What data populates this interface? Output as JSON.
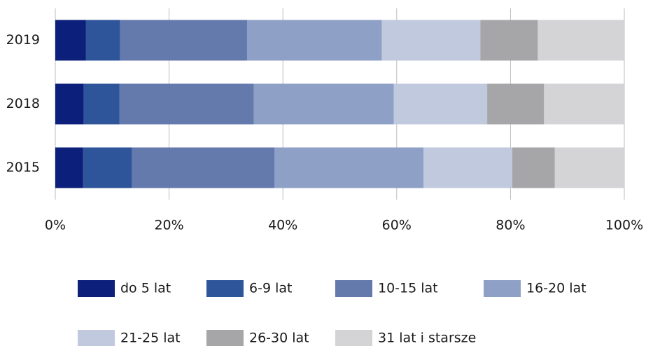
{
  "chart_data": {
    "type": "stacked-bar-horizontal",
    "categories": [
      "2019",
      "2018",
      "2015"
    ],
    "series": [
      {
        "name": "do 5 lat",
        "color": "#0c1f7a",
        "values": [
          5.4,
          5.0,
          4.9
        ]
      },
      {
        "name": "6-9 lat",
        "color": "#2e5599",
        "values": [
          6.0,
          6.3,
          8.6
        ]
      },
      {
        "name": "10-15 lat",
        "color": "#6479ac",
        "values": [
          22.3,
          23.6,
          25.0
        ]
      },
      {
        "name": "16-20 lat",
        "color": "#8fa0c7",
        "values": [
          23.7,
          24.6,
          26.2
        ]
      },
      {
        "name": "21-25 lat",
        "color": "#c0c9de",
        "values": [
          17.3,
          16.4,
          15.6
        ]
      },
      {
        "name": "26-30 lat",
        "color": "#a6a6a8",
        "values": [
          10.1,
          10.0,
          7.5
        ]
      },
      {
        "name": "31 lat i starsze",
        "color": "#d4d4d6",
        "values": [
          15.2,
          14.1,
          12.2
        ]
      }
    ],
    "xlim": [
      0,
      100
    ],
    "xticks": [
      {
        "value": 0,
        "label": "0%"
      },
      {
        "value": 20,
        "label": "20%"
      },
      {
        "value": 40,
        "label": "40%"
      },
      {
        "value": 60,
        "label": "60%"
      },
      {
        "value": 80,
        "label": "80%"
      },
      {
        "value": 100,
        "label": "100%"
      }
    ],
    "grid": true,
    "legend": "bottom"
  }
}
